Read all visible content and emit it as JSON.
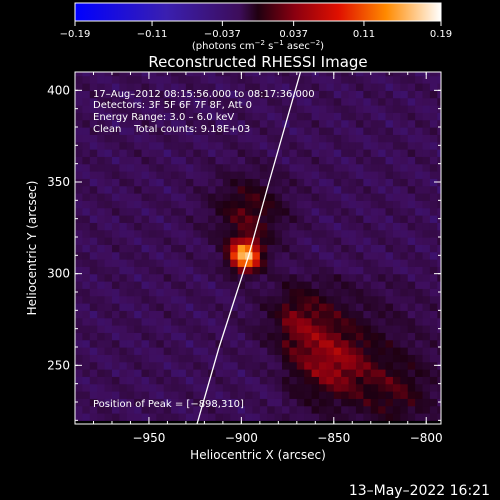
{
  "chart_data": {
    "type": "heatmap",
    "title": "Reconstructed RHESSI Image",
    "xlabel": "Heliocentric X (arcsec)",
    "ylabel": "Heliocentric Y (arcsec)",
    "xlim": [
      -990,
      -792
    ],
    "ylim": [
      218,
      410
    ],
    "x_ticks": [
      -950,
      -900,
      -850,
      -800
    ],
    "x_tick_labels": [
      "−950",
      "−900",
      "−850",
      "−800"
    ],
    "y_ticks": [
      250,
      300,
      350,
      400
    ],
    "y_tick_labels": [
      "250",
      "300",
      "350",
      "400"
    ],
    "colorbar": {
      "range": [
        -0.19,
        0.19
      ],
      "ticks": [
        -0.19,
        -0.11,
        -0.037,
        0.037,
        0.11,
        0.19
      ],
      "tick_labels": [
        "−0.19",
        "−0.11",
        "−0.037",
        "0.037",
        "0.11",
        "0.19"
      ],
      "label_main": "(photons cm",
      "label_exp1": "−2",
      "label_mid": " s",
      "label_exp2": "−1",
      "label_end": " asec",
      "label_exp3": "−2",
      "label_close": ")"
    },
    "annotations": {
      "time_range": "17–Aug–2012 08:15:56.000 to 08:17:36.000",
      "detectors": "Detectors: 3F 5F 6F 7F 8F, Att 0",
      "energy": "Energy Range: 3.0 – 6.0 keV",
      "clean": "Clean    Total counts: 9.18E+03",
      "peak": "Position of Peak = [−898,310]"
    },
    "peak": {
      "x": -898,
      "y": 310,
      "value": 0.19
    },
    "secondary_sources": [
      {
        "x": -896,
        "y": 334,
        "value": 0.06
      },
      {
        "x": -870,
        "y": 275,
        "value": 0.05
      },
      {
        "x": -850,
        "y": 250,
        "value": 0.055
      },
      {
        "x": -815,
        "y": 235,
        "value": 0.04
      }
    ],
    "limb_curve": [
      [
        -924,
        218
      ],
      [
        -912,
        260
      ],
      [
        -896,
        310
      ],
      [
        -885,
        350
      ],
      [
        -868,
        410
      ]
    ],
    "grid": false
  },
  "footer": {
    "timestamp": "13–May–2022 16:21"
  }
}
